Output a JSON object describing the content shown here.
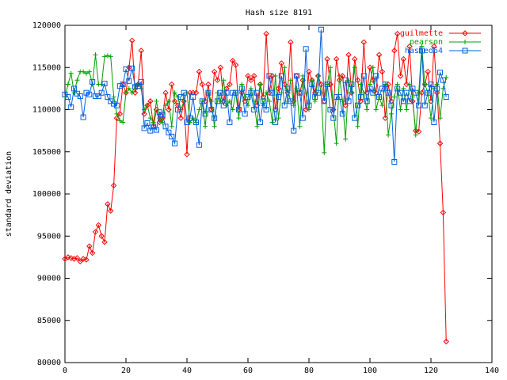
{
  "chart_data": {
    "type": "line",
    "title": "Hash size 8191",
    "y_label": "standard deviation",
    "x": [
      0,
      1,
      2,
      3,
      4,
      5,
      6,
      7,
      8,
      9,
      10,
      11,
      12,
      13,
      14,
      15,
      16,
      17,
      18,
      19,
      20,
      21,
      22,
      23,
      24,
      25,
      26,
      27,
      28,
      29,
      30,
      31,
      32,
      33,
      34,
      35,
      36,
      37,
      38,
      39,
      40,
      41,
      42,
      43,
      44,
      45,
      46,
      47,
      48,
      49,
      50,
      51,
      52,
      53,
      54,
      55,
      56,
      57,
      58,
      59,
      60,
      61,
      62,
      63,
      64,
      65,
      66,
      67,
      68,
      69,
      70,
      71,
      72,
      73,
      74,
      75,
      76,
      77,
      78,
      79,
      80,
      81,
      82,
      83,
      84,
      85,
      86,
      87,
      88,
      89,
      90,
      91,
      92,
      93,
      94,
      95,
      96,
      97,
      98,
      99,
      100,
      101,
      102,
      103,
      104,
      105,
      106,
      107,
      108,
      109,
      110,
      111,
      112,
      113,
      114,
      115,
      116,
      117,
      118,
      119,
      120,
      121,
      122,
      123,
      124,
      125
    ],
    "series": [
      {
        "name": "guilmette",
        "color": "#ff0000",
        "marker": "diamond",
        "values": [
          92300,
          92500,
          92400,
          92300,
          92400,
          92000,
          92300,
          92200,
          93800,
          93000,
          95500,
          96300,
          95000,
          94300,
          98800,
          98000,
          101000,
          109000,
          109500,
          113000,
          112000,
          115000,
          118200,
          112000,
          113000,
          117000,
          109500,
          110500,
          111000,
          108000,
          110000,
          108500,
          109000,
          112000,
          110000,
          113000,
          111000,
          110500,
          109000,
          111000,
          104700,
          112000,
          112000,
          112000,
          114500,
          113000,
          111000,
          113000,
          110000,
          114500,
          113500,
          115000,
          111000,
          112500,
          113000,
          115800,
          115300,
          110000,
          112000,
          111000,
          114000,
          113500,
          114000,
          110500,
          113000,
          111500,
          119000,
          112000,
          114000,
          110000,
          112500,
          115500,
          113000,
          112000,
          118000,
          111000,
          114000,
          112000,
          113500,
          110000,
          114500,
          113500,
          112000,
          114000,
          113000,
          111000,
          116000,
          113000,
          110000,
          116000,
          113500,
          114000,
          110500,
          116500,
          112000,
          116000,
          113500,
          111000,
          118000,
          112000,
          115000,
          113500,
          112000,
          116500,
          114500,
          109000,
          113000,
          111000,
          117000,
          119000,
          114000,
          116000,
          113000,
          117500,
          111000,
          107500,
          107400,
          112000,
          113000,
          114500,
          111000,
          117500,
          112000,
          106000,
          97800,
          82500
        ]
      },
      {
        "name": "pearson",
        "color": "#00a000",
        "marker": "plus",
        "values": [
          111500,
          113000,
          114300,
          112000,
          113500,
          114500,
          114500,
          114300,
          114500,
          113000,
          116500,
          113000,
          113000,
          116300,
          116400,
          116300,
          111500,
          109500,
          108700,
          108500,
          112000,
          112500,
          112000,
          112800,
          113000,
          112500,
          110000,
          110500,
          109000,
          108500,
          111000,
          109000,
          108500,
          110500,
          111000,
          108000,
          112000,
          111500,
          110000,
          111000,
          112000,
          108500,
          109000,
          108500,
          110000,
          111000,
          108000,
          112000,
          111000,
          108000,
          112000,
          111000,
          113500,
          110500,
          111000,
          110000,
          112000,
          109000,
          113000,
          111500,
          110500,
          112500,
          111000,
          108000,
          113000,
          110500,
          112000,
          111000,
          108500,
          114000,
          109000,
          112000,
          115000,
          111000,
          113500,
          110500,
          112500,
          108000,
          114000,
          112000,
          110000,
          113500,
          111000,
          114000,
          112000,
          104900,
          113000,
          115000,
          110000,
          106000,
          114000,
          111000,
          106500,
          113500,
          112000,
          115000,
          108000,
          113000,
          112000,
          110000,
          113000,
          115000,
          110000,
          111500,
          110500,
          113000,
          107000,
          109500,
          111500,
          113000,
          110000,
          112500,
          110000,
          113000,
          111500,
          107000,
          112000,
          117500,
          113000,
          112000,
          109000,
          112500,
          113000,
          109000,
          112500,
          113800
        ]
      },
      {
        "name": "hashed64",
        "color": "#0060e0",
        "marker": "square",
        "values": [
          111800,
          111500,
          110300,
          112500,
          111900,
          111600,
          109100,
          112000,
          111800,
          113300,
          111600,
          111600,
          112000,
          113100,
          111500,
          111000,
          110700,
          110500,
          112800,
          113000,
          114800,
          113400,
          114900,
          112700,
          112800,
          113300,
          107800,
          108400,
          107500,
          108000,
          107600,
          109700,
          109400,
          108000,
          107300,
          106800,
          106000,
          110000,
          111500,
          112000,
          108500,
          109000,
          111500,
          108500,
          105800,
          111000,
          109500,
          112000,
          110000,
          109000,
          111000,
          112000,
          110500,
          112000,
          108500,
          112000,
          112000,
          110000,
          112500,
          109500,
          111500,
          112000,
          110000,
          112000,
          108500,
          111000,
          110000,
          114000,
          112000,
          108500,
          111500,
          114000,
          110500,
          112500,
          111000,
          107500,
          114000,
          112000,
          109000,
          117200,
          110500,
          113000,
          111500,
          112000,
          119500,
          111000,
          113000,
          110000,
          109000,
          111500,
          111500,
          109500,
          113500,
          111000,
          113000,
          109000,
          110500,
          111500,
          114000,
          111000,
          112500,
          112000,
          114000,
          111500,
          112500,
          113000,
          112000,
          110500,
          103800,
          112500,
          112000,
          111000,
          112000,
          111000,
          112500,
          112000,
          110500,
          117000,
          110500,
          112000,
          113000,
          108500,
          112500,
          114400,
          113500,
          111500
        ]
      }
    ],
    "xlim": [
      0,
      140
    ],
    "xticks": [
      0,
      20,
      40,
      60,
      80,
      100,
      120,
      140
    ],
    "ylim": [
      80000,
      120000
    ],
    "yticks": [
      80000,
      85000,
      90000,
      95000,
      100000,
      105000,
      110000,
      115000,
      120000
    ],
    "legend": "top-right"
  }
}
